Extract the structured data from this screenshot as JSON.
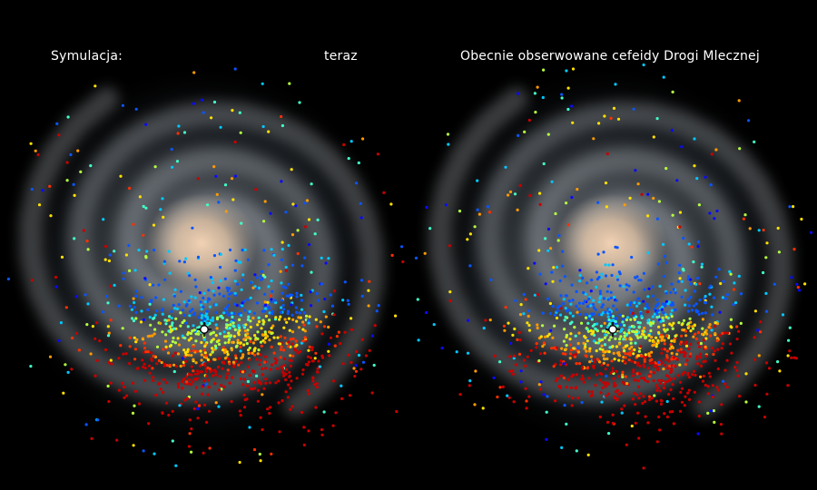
{
  "left_panel": {
    "title_left": "Symulacja:",
    "title_right": "teraz"
  },
  "right_panel": {
    "title": "Obecnie obserwowane cefeidy Drogi Mlecznej"
  },
  "colors": {
    "background": "#000000",
    "galaxy_core": "#f2d2b4",
    "sun_marker": "#ffffff",
    "dot_palette": [
      "#0a0aff",
      "#0a55ff",
      "#00c8ff",
      "#40ffc8",
      "#b4ff40",
      "#ffe000",
      "#ff9a00",
      "#ff3000",
      "#c80000"
    ]
  },
  "icons": {
    "sun_marker": "sun-position-icon"
  }
}
